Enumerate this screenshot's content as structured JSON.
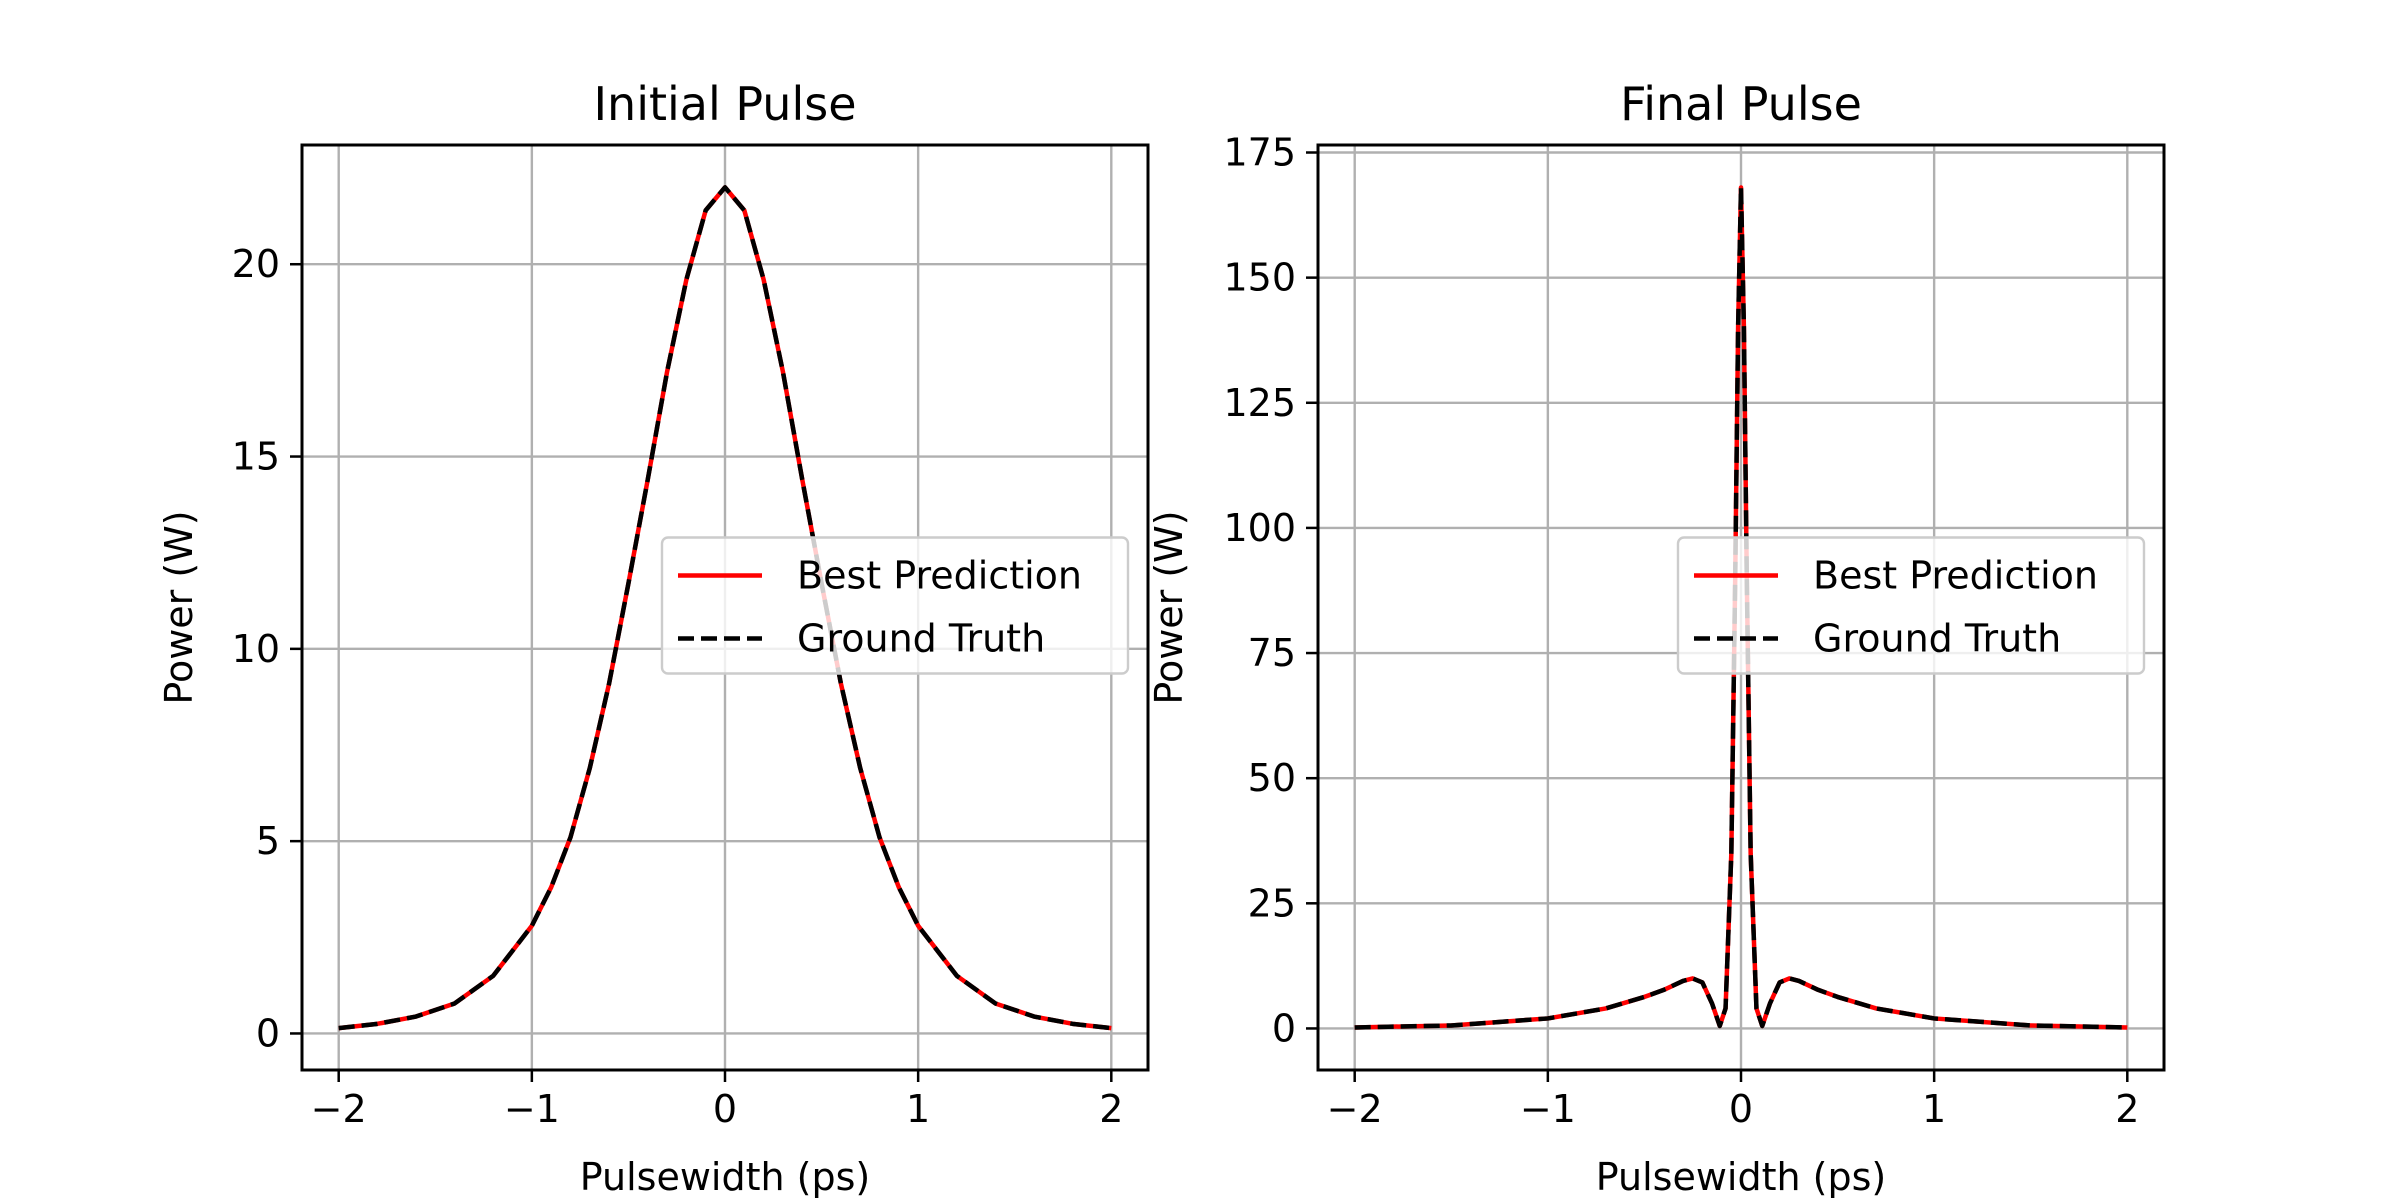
{
  "chart_data": [
    {
      "type": "line",
      "title": "Initial Pulse",
      "xlabel": "Pulsewidth (ps)",
      "ylabel": "Power (W)",
      "xlim": [
        -2.19,
        2.19
      ],
      "ylim": [
        -0.95,
        23.1
      ],
      "xticks": [
        -2,
        -1,
        0,
        1,
        2
      ],
      "xtick_labels": [
        "−2",
        "−1",
        "0",
        "1",
        "2"
      ],
      "yticks": [
        0,
        5,
        10,
        15,
        20
      ],
      "ytick_labels": [
        "0",
        "5",
        "10",
        "15",
        "20"
      ],
      "grid": true,
      "legend": {
        "placement": "center-right",
        "entries": [
          "Best Prediction",
          "Ground Truth"
        ]
      },
      "series": [
        {
          "name": "Best Prediction",
          "color": "#ff0000",
          "style": "solid",
          "x": [
            -2.0,
            -1.8,
            -1.6,
            -1.4,
            -1.2,
            -1.0,
            -0.9,
            -0.8,
            -0.7,
            -0.6,
            -0.5,
            -0.4,
            -0.3,
            -0.2,
            -0.1,
            0.0,
            0.1,
            0.2,
            0.3,
            0.4,
            0.5,
            0.6,
            0.7,
            0.8,
            0.9,
            1.0,
            1.2,
            1.4,
            1.6,
            1.8,
            2.0
          ],
          "y": [
            0.14,
            0.25,
            0.44,
            0.78,
            1.5,
            2.8,
            3.8,
            5.1,
            6.9,
            9.1,
            11.7,
            14.4,
            17.2,
            19.6,
            21.4,
            22.0,
            21.4,
            19.6,
            17.2,
            14.4,
            11.7,
            9.1,
            6.9,
            5.1,
            3.8,
            2.8,
            1.5,
            0.78,
            0.44,
            0.25,
            0.14
          ]
        },
        {
          "name": "Ground Truth",
          "color": "#000000",
          "style": "dashed",
          "x": [
            -2.0,
            -1.8,
            -1.6,
            -1.4,
            -1.2,
            -1.0,
            -0.9,
            -0.8,
            -0.7,
            -0.6,
            -0.5,
            -0.4,
            -0.3,
            -0.2,
            -0.1,
            0.0,
            0.1,
            0.2,
            0.3,
            0.4,
            0.5,
            0.6,
            0.7,
            0.8,
            0.9,
            1.0,
            1.2,
            1.4,
            1.6,
            1.8,
            2.0
          ],
          "y": [
            0.14,
            0.25,
            0.44,
            0.78,
            1.5,
            2.8,
            3.8,
            5.1,
            6.9,
            9.1,
            11.7,
            14.4,
            17.2,
            19.6,
            21.4,
            22.0,
            21.4,
            19.6,
            17.2,
            14.4,
            11.7,
            9.1,
            6.9,
            5.1,
            3.8,
            2.8,
            1.5,
            0.78,
            0.44,
            0.25,
            0.14
          ]
        }
      ]
    },
    {
      "type": "line",
      "title": "Final Pulse",
      "xlabel": "Pulsewidth (ps)",
      "ylabel": "Power (W)",
      "xlim": [
        -2.19,
        2.19
      ],
      "ylim": [
        -8.3,
        176.5
      ],
      "xticks": [
        -2,
        -1,
        0,
        1,
        2
      ],
      "xtick_labels": [
        "−2",
        "−1",
        "0",
        "1",
        "2"
      ],
      "yticks": [
        0,
        25,
        50,
        75,
        100,
        125,
        150,
        175
      ],
      "ytick_labels": [
        "0",
        "25",
        "50",
        "75",
        "100",
        "125",
        "150",
        "175"
      ],
      "grid": true,
      "legend": {
        "placement": "center-right",
        "entries": [
          "Best Prediction",
          "Ground Truth"
        ]
      },
      "series": [
        {
          "name": "Best Prediction",
          "color": "#ff0000",
          "style": "solid",
          "x": [
            -2.0,
            -1.5,
            -1.0,
            -0.7,
            -0.5,
            -0.4,
            -0.3,
            -0.25,
            -0.2,
            -0.15,
            -0.11,
            -0.08,
            -0.05,
            -0.03,
            -0.015,
            0.0,
            0.015,
            0.03,
            0.05,
            0.08,
            0.11,
            0.15,
            0.2,
            0.25,
            0.3,
            0.4,
            0.5,
            0.7,
            1.0,
            1.5,
            2.0
          ],
          "y": [
            0.2,
            0.6,
            2.0,
            4.0,
            6.3,
            7.7,
            9.5,
            10.0,
            9.2,
            5.0,
            0.5,
            4.0,
            35.0,
            90.0,
            140.0,
            168.0,
            140.0,
            90.0,
            35.0,
            4.0,
            0.5,
            5.0,
            9.2,
            10.0,
            9.5,
            7.7,
            6.3,
            4.0,
            2.0,
            0.6,
            0.2
          ]
        },
        {
          "name": "Ground Truth",
          "color": "#000000",
          "style": "dashed",
          "x": [
            -2.0,
            -1.5,
            -1.0,
            -0.7,
            -0.5,
            -0.4,
            -0.3,
            -0.25,
            -0.2,
            -0.15,
            -0.11,
            -0.08,
            -0.05,
            -0.03,
            -0.015,
            0.0,
            0.015,
            0.03,
            0.05,
            0.08,
            0.11,
            0.15,
            0.2,
            0.25,
            0.3,
            0.4,
            0.5,
            0.7,
            1.0,
            1.5,
            2.0
          ],
          "y": [
            0.2,
            0.6,
            2.0,
            4.0,
            6.3,
            7.7,
            9.5,
            10.0,
            9.2,
            5.0,
            0.5,
            4.0,
            35.0,
            90.0,
            140.0,
            168.0,
            140.0,
            90.0,
            35.0,
            4.0,
            0.5,
            5.0,
            9.2,
            10.0,
            9.5,
            7.7,
            6.3,
            4.0,
            2.0,
            0.6,
            0.2
          ]
        }
      ]
    }
  ]
}
